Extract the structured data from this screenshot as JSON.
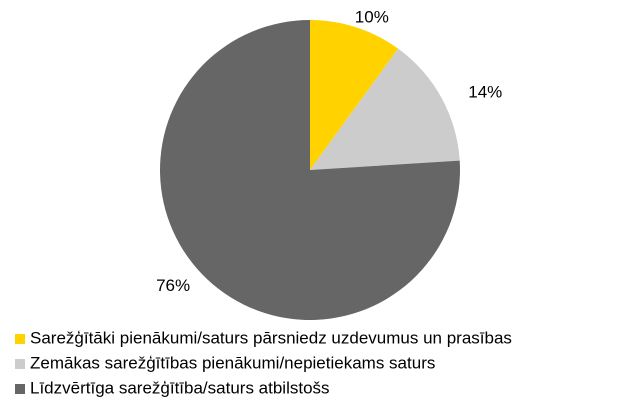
{
  "chart_data": {
    "type": "pie",
    "categories": [
      "Sarežģītāki pienākumi/saturs pārsniedz uzdevumus un prasības",
      "Zemākas sarežģītības pienākumi/nepietiekams saturs",
      "Līdzvērtīga sarežģītība/saturs atbilstošs"
    ],
    "values": [
      10,
      14,
      76
    ],
    "value_labels": [
      "10%",
      "14%",
      "76%"
    ],
    "colors": [
      "#ffd200",
      "#cccccc",
      "#666666"
    ]
  }
}
